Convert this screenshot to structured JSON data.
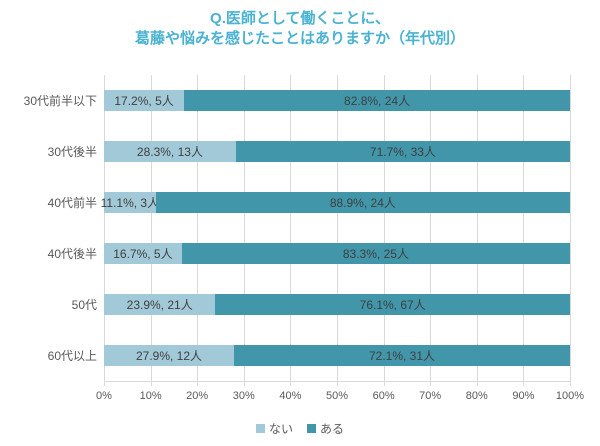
{
  "title": {
    "line1": "Q.医師として働くことに、",
    "line2": "葛藤や悩みを感じたことはありますか（年代別）"
  },
  "colors": {
    "title_text": "#4ab2d2",
    "series_nai": "#a2c9d8",
    "series_aru": "#4296a9",
    "gridline": "#d9d9d9",
    "axis_text": "#595959",
    "bar_label_text": "#3f3f3f"
  },
  "legend": {
    "items": [
      {
        "label": "ない",
        "color": "#a2c9d8"
      },
      {
        "label": "ある",
        "color": "#4296a9"
      }
    ]
  },
  "chart_data": {
    "type": "bar",
    "orientation": "horizontal",
    "stacked": true,
    "title": "Q.医師として働くことに、葛藤や悩みを感じたことはありますか（年代別）",
    "categories": [
      "30代前半以下",
      "30代後半",
      "40代前半",
      "40代後半",
      "50代",
      "60代以上"
    ],
    "series": [
      {
        "name": "ない",
        "color": "#a2c9d8",
        "values": [
          17.2,
          28.3,
          11.1,
          16.7,
          23.9,
          27.9
        ],
        "counts": [
          5,
          13,
          3,
          5,
          21,
          12
        ],
        "labels": [
          "17.2%, 5人",
          "28.3%, 13人",
          "11.1%, 3人",
          "16.7%, 5人",
          "23.9%, 21人",
          "27.9%, 12人"
        ]
      },
      {
        "name": "ある",
        "color": "#4296a9",
        "values": [
          82.8,
          71.7,
          88.9,
          83.3,
          76.1,
          72.1
        ],
        "counts": [
          24,
          33,
          24,
          25,
          67,
          31
        ],
        "labels": [
          "82.8%, 24人",
          "71.7%, 33人",
          "88.9%, 24人",
          "83.3%, 25人",
          "76.1%, 67人",
          "72.1%, 31人"
        ]
      }
    ],
    "xlabel": "",
    "ylabel": "",
    "xlim": [
      0,
      100
    ],
    "x_ticks": [
      "0%",
      "10%",
      "20%",
      "30%",
      "40%",
      "50%",
      "60%",
      "70%",
      "80%",
      "90%",
      "100%"
    ],
    "grid": true,
    "legend_position": "bottom"
  }
}
